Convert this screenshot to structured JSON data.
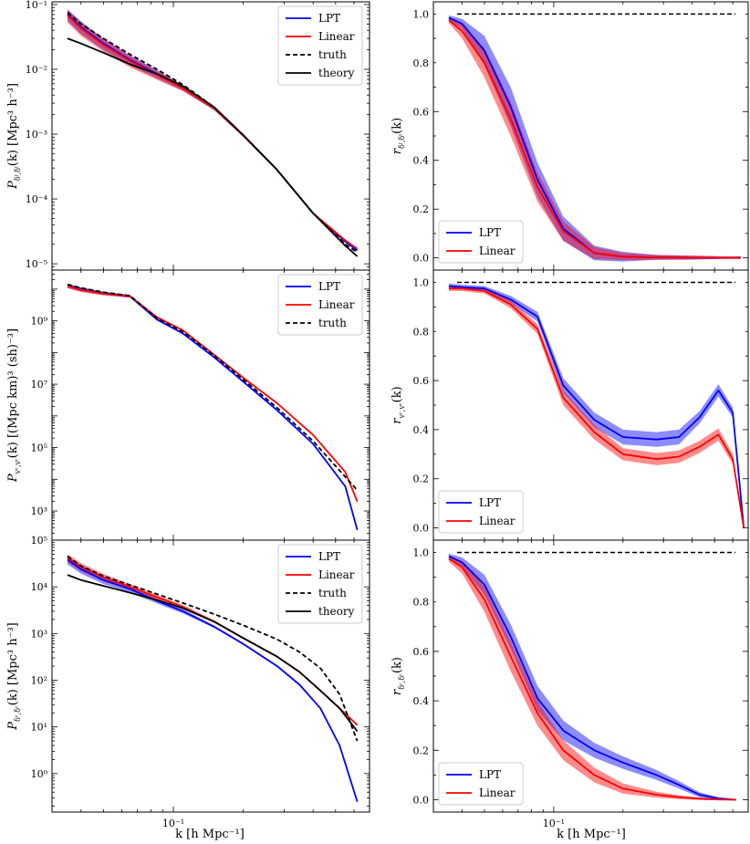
{
  "figure": {
    "xlabel": "k [h Mpc⁻¹]",
    "x_major_tick_label": "10⁻¹"
  },
  "chart_data": [
    {
      "id": "power-delta",
      "type": "line",
      "xscale": "log",
      "yscale": "log",
      "xlim": [
        0.03,
        0.7
      ],
      "ylim": [
        8e-06,
        0.11
      ],
      "ylabel": "P_{δ⁽, δ⁽}(k) [Mpc³ h⁻³]",
      "ylabel_main": "P",
      "ylabel_sub": "δˡ,δˡ",
      "ylabel_rest": "(k) [Mpc³ h⁻³]",
      "yticks": [
        {
          "value": 0.1,
          "label": "10⁻¹"
        },
        {
          "value": 0.01,
          "label": "10⁻²"
        },
        {
          "value": 0.001,
          "label": "10⁻³"
        },
        {
          "value": 0.0001,
          "label": "10⁻⁴"
        },
        {
          "value": 1e-05,
          "label": "10⁻⁵"
        }
      ],
      "legend_position": "top-right",
      "legend": [
        "LPT",
        "Linear",
        "truth",
        "theory"
      ],
      "series": [
        {
          "name": "LPT",
          "color": "#0000ff",
          "style": "solid",
          "x": [
            0.035,
            0.04,
            0.05,
            0.065,
            0.085,
            0.11,
            0.15,
            0.2,
            0.28,
            0.4,
            0.55,
            0.62
          ],
          "y": [
            0.07,
            0.045,
            0.025,
            0.014,
            0.0085,
            0.0052,
            0.0025,
            0.00095,
            0.00028,
            6e-05,
            2.2e-05,
            1.6e-05
          ],
          "band": [
            0.2,
            0.22,
            0.2,
            0.18,
            0.15,
            0.1,
            0.06,
            0.04,
            0.03,
            0.03,
            0.03,
            0.03
          ]
        },
        {
          "name": "Linear",
          "color": "#ff0000",
          "style": "solid",
          "x": [
            0.035,
            0.04,
            0.05,
            0.065,
            0.085,
            0.11,
            0.15,
            0.2,
            0.28,
            0.4,
            0.55,
            0.62
          ],
          "y": [
            0.068,
            0.043,
            0.024,
            0.0135,
            0.0082,
            0.0051,
            0.0025,
            0.00095,
            0.00028,
            6e-05,
            2.3e-05,
            1.7e-05
          ],
          "band": [
            0.22,
            0.24,
            0.22,
            0.2,
            0.16,
            0.1,
            0.06,
            0.04,
            0.03,
            0.03,
            0.03,
            0.03
          ]
        },
        {
          "name": "truth",
          "color": "#000000",
          "style": "dashed",
          "x": [
            0.035,
            0.04,
            0.05,
            0.065,
            0.085,
            0.11,
            0.15,
            0.2,
            0.28,
            0.4,
            0.55,
            0.62
          ],
          "y": [
            0.075,
            0.05,
            0.03,
            0.017,
            0.01,
            0.0058,
            0.0026,
            0.00097,
            0.00028,
            6e-05,
            2e-05,
            1.5e-05
          ]
        },
        {
          "name": "theory",
          "color": "#000000",
          "style": "solid",
          "x": [
            0.035,
            0.04,
            0.05,
            0.065,
            0.085,
            0.11,
            0.15,
            0.2,
            0.28,
            0.4,
            0.55,
            0.62
          ],
          "y": [
            0.03,
            0.025,
            0.018,
            0.012,
            0.0085,
            0.0055,
            0.0026,
            0.00097,
            0.00028,
            6e-05,
            1.9e-05,
            1.3e-05
          ]
        }
      ]
    },
    {
      "id": "corr-delta",
      "type": "line",
      "xscale": "log",
      "yscale": "linear",
      "xlim": [
        0.03,
        0.7
      ],
      "ylim": [
        -0.05,
        1.05
      ],
      "ylabel_main": "r",
      "ylabel_sub": "δˡ,δˡ",
      "ylabel_rest": "(k)",
      "yticks": [
        {
          "value": 0.0,
          "label": "0.0"
        },
        {
          "value": 0.2,
          "label": "0.2"
        },
        {
          "value": 0.4,
          "label": "0.4"
        },
        {
          "value": 0.6,
          "label": "0.6"
        },
        {
          "value": 0.8,
          "label": "0.8"
        },
        {
          "value": 1.0,
          "label": "1.0"
        }
      ],
      "legend_position": "lower-left",
      "legend": [
        "LPT",
        "Linear"
      ],
      "reference_line": 1.0,
      "series": [
        {
          "name": "LPT",
          "color": "#0000ff",
          "style": "solid",
          "x": [
            0.035,
            0.04,
            0.05,
            0.065,
            0.085,
            0.11,
            0.15,
            0.2,
            0.28,
            0.4,
            0.55,
            0.65
          ],
          "y": [
            0.985,
            0.96,
            0.85,
            0.62,
            0.32,
            0.12,
            0.02,
            0.005,
            0.002,
            0.001,
            0.001,
            0.001
          ],
          "band_abs": [
            0.01,
            0.02,
            0.06,
            0.08,
            0.07,
            0.05,
            0.03,
            0.02,
            0.01,
            0.008,
            0.005,
            0.005
          ]
        },
        {
          "name": "Linear",
          "color": "#ff0000",
          "style": "solid",
          "x": [
            0.035,
            0.04,
            0.05,
            0.065,
            0.085,
            0.11,
            0.15,
            0.2,
            0.28,
            0.4,
            0.55,
            0.65
          ],
          "y": [
            0.975,
            0.93,
            0.8,
            0.57,
            0.29,
            0.11,
            0.02,
            0.005,
            0.002,
            0.001,
            0.001,
            0.001
          ],
          "band_abs": [
            0.012,
            0.03,
            0.06,
            0.07,
            0.06,
            0.04,
            0.025,
            0.015,
            0.01,
            0.008,
            0.005,
            0.005
          ]
        }
      ]
    },
    {
      "id": "power-velocity",
      "type": "line",
      "xscale": "log",
      "yscale": "log",
      "xlim": [
        0.03,
        0.7
      ],
      "ylim": [
        120,
        40000000000.0
      ],
      "ylabel_main": "P",
      "ylabel_sub": "vʳ,vʳ",
      "ylabel_rest": "(k) [(Mpc km)³ (sh)⁻³]",
      "yticks": [
        {
          "value": 1000000000.0,
          "label": "10⁹"
        },
        {
          "value": 10000000.0,
          "label": "10⁷"
        },
        {
          "value": 100000.0,
          "label": "10⁵"
        },
        {
          "value": 1000.0,
          "label": "10³"
        }
      ],
      "legend_position": "top-right",
      "legend": [
        "LPT",
        "Linear",
        "truth"
      ],
      "series": [
        {
          "name": "LPT",
          "color": "#0000ff",
          "style": "solid",
          "x": [
            0.035,
            0.04,
            0.05,
            0.065,
            0.085,
            0.11,
            0.15,
            0.2,
            0.28,
            0.4,
            0.55,
            0.62
          ],
          "y": [
            13000000000.0,
            10000000000.0,
            7500000000.0,
            6000000000.0,
            1100000000.0,
            400000000.0,
            70000000.0,
            12000000.0,
            1500000.0,
            130000.0,
            6000.0,
            250.0
          ],
          "band": [
            0.15,
            0.15,
            0.12,
            0.1,
            0.08,
            0.06,
            0.05,
            0.05,
            0.05,
            0.06,
            0.08,
            0.05
          ]
        },
        {
          "name": "Linear",
          "color": "#ff0000",
          "style": "solid",
          "x": [
            0.035,
            0.04,
            0.05,
            0.065,
            0.085,
            0.11,
            0.15,
            0.2,
            0.28,
            0.4,
            0.55,
            0.62
          ],
          "y": [
            12500000000.0,
            9500000000.0,
            7200000000.0,
            6000000000.0,
            1300000000.0,
            500000000.0,
            85000000.0,
            16000000.0,
            2500000.0,
            250000.0,
            17000.0,
            2000.0
          ],
          "band": [
            0.15,
            0.15,
            0.12,
            0.1,
            0.08,
            0.06,
            0.05,
            0.05,
            0.05,
            0.05,
            0.05,
            0.05
          ]
        },
        {
          "name": "truth",
          "color": "#000000",
          "style": "dashed",
          "x": [
            0.035,
            0.04,
            0.05,
            0.065,
            0.085,
            0.11,
            0.15,
            0.2,
            0.28,
            0.4,
            0.55,
            0.62
          ],
          "y": [
            14000000000.0,
            11000000000.0,
            8000000000.0,
            6200000000.0,
            1200000000.0,
            450000000.0,
            80000000.0,
            14000000.0,
            1800000.0,
            160000.0,
            12000.0,
            4500.0
          ]
        }
      ]
    },
    {
      "id": "corr-velocity",
      "type": "line",
      "xscale": "log",
      "yscale": "linear",
      "xlim": [
        0.03,
        0.7
      ],
      "ylim": [
        -0.05,
        1.05
      ],
      "ylabel_main": "r",
      "ylabel_sub": "vʳ,vʳ",
      "ylabel_rest": "(k)",
      "yticks": [
        {
          "value": 0.0,
          "label": "0.0"
        },
        {
          "value": 0.2,
          "label": "0.2"
        },
        {
          "value": 0.4,
          "label": "0.4"
        },
        {
          "value": 0.6,
          "label": "0.6"
        },
        {
          "value": 0.8,
          "label": "0.8"
        },
        {
          "value": 1.0,
          "label": "1.0"
        }
      ],
      "legend_position": "lower-left",
      "legend": [
        "LPT",
        "Linear"
      ],
      "reference_line": 1.0,
      "series": [
        {
          "name": "LPT",
          "color": "#0000ff",
          "style": "solid",
          "x": [
            0.035,
            0.04,
            0.05,
            0.065,
            0.085,
            0.11,
            0.15,
            0.2,
            0.28,
            0.35,
            0.43,
            0.52,
            0.6,
            0.67
          ],
          "y": [
            0.985,
            0.98,
            0.975,
            0.93,
            0.86,
            0.58,
            0.44,
            0.37,
            0.36,
            0.37,
            0.45,
            0.56,
            0.47,
            0.0
          ],
          "band_abs": [
            0.01,
            0.01,
            0.01,
            0.015,
            0.02,
            0.03,
            0.03,
            0.03,
            0.03,
            0.03,
            0.025,
            0.025,
            0.02,
            0.0
          ]
        },
        {
          "name": "Linear",
          "color": "#ff0000",
          "style": "solid",
          "x": [
            0.035,
            0.04,
            0.05,
            0.065,
            0.085,
            0.11,
            0.15,
            0.2,
            0.28,
            0.35,
            0.43,
            0.52,
            0.6,
            0.67
          ],
          "y": [
            0.975,
            0.975,
            0.965,
            0.91,
            0.81,
            0.53,
            0.39,
            0.3,
            0.28,
            0.29,
            0.33,
            0.38,
            0.28,
            0.0
          ],
          "band_abs": [
            0.01,
            0.01,
            0.01,
            0.015,
            0.02,
            0.03,
            0.03,
            0.025,
            0.025,
            0.025,
            0.025,
            0.025,
            0.02,
            0.0
          ]
        }
      ]
    },
    {
      "id": "power-rsd",
      "type": "line",
      "xscale": "log",
      "yscale": "log",
      "xlim": [
        0.03,
        0.7
      ],
      "ylim": [
        0.15,
        100000.0
      ],
      "ylabel_main": "P",
      "ylabel_sub": "δʳ,δʳ",
      "ylabel_rest": "(k) [Mpc³ h⁻³]",
      "yticks": [
        {
          "value": 100000.0,
          "label": "10⁵"
        },
        {
          "value": 10000.0,
          "label": "10⁴"
        },
        {
          "value": 1000.0,
          "label": "10³"
        },
        {
          "value": 100.0,
          "label": "10²"
        },
        {
          "value": 10.0,
          "label": "10¹"
        },
        {
          "value": 1.0,
          "label": "10⁰"
        }
      ],
      "legend_position": "top-right",
      "legend": [
        "LPT",
        "Linear",
        "truth",
        "theory"
      ],
      "series": [
        {
          "name": "LPT",
          "color": "#0000ff",
          "style": "solid",
          "x": [
            0.035,
            0.04,
            0.05,
            0.065,
            0.085,
            0.11,
            0.15,
            0.2,
            0.28,
            0.35,
            0.43,
            0.52,
            0.62
          ],
          "y": [
            38000,
            24000,
            14000,
            9000,
            5000,
            3000,
            1400,
            600,
            200,
            80,
            25,
            4,
            0.25
          ],
          "band": [
            0.2,
            0.2,
            0.18,
            0.15,
            0.12,
            0.1,
            0.06,
            0.05,
            0.05,
            0.05,
            0.05,
            0.05,
            0.05
          ]
        },
        {
          "name": "Linear",
          "color": "#ff0000",
          "style": "solid",
          "x": [
            0.035,
            0.04,
            0.05,
            0.065,
            0.085,
            0.11,
            0.15,
            0.2,
            0.28,
            0.35,
            0.43,
            0.52,
            0.62
          ],
          "y": [
            42000,
            27000,
            16000,
            10000,
            6000,
            3700,
            1800,
            800,
            320,
            150,
            60,
            25,
            11
          ],
          "band": [
            0.2,
            0.2,
            0.18,
            0.15,
            0.12,
            0.1,
            0.06,
            0.05,
            0.04,
            0.04,
            0.04,
            0.04,
            0.04
          ]
        },
        {
          "name": "truth",
          "color": "#000000",
          "style": "dashed",
          "x": [
            0.035,
            0.04,
            0.05,
            0.065,
            0.085,
            0.11,
            0.15,
            0.2,
            0.28,
            0.35,
            0.43,
            0.52,
            0.62
          ],
          "y": [
            45000,
            28000,
            17000,
            11000,
            7000,
            4500,
            2600,
            1500,
            750,
            400,
            180,
            50,
            5
          ]
        },
        {
          "name": "theory",
          "color": "#000000",
          "style": "solid",
          "x": [
            0.035,
            0.04,
            0.05,
            0.065,
            0.085,
            0.11,
            0.15,
            0.2,
            0.28,
            0.35,
            0.43,
            0.52,
            0.62
          ],
          "y": [
            18000,
            14000,
            10500,
            7500,
            5200,
            3500,
            1800,
            800,
            320,
            150,
            60,
            25,
            8
          ]
        }
      ]
    },
    {
      "id": "corr-rsd",
      "type": "line",
      "xscale": "log",
      "yscale": "linear",
      "xlim": [
        0.03,
        0.7
      ],
      "ylim": [
        -0.05,
        1.05
      ],
      "ylabel_main": "r",
      "ylabel_sub": "δʳ,δʳ",
      "ylabel_rest": "(k)",
      "yticks": [
        {
          "value": 0.0,
          "label": "0.0"
        },
        {
          "value": 0.2,
          "label": "0.2"
        },
        {
          "value": 0.4,
          "label": "0.4"
        },
        {
          "value": 0.6,
          "label": "0.6"
        },
        {
          "value": 0.8,
          "label": "0.8"
        },
        {
          "value": 1.0,
          "label": "1.0"
        }
      ],
      "legend_position": "lower-left",
      "legend": [
        "LPT",
        "Linear"
      ],
      "reference_line": 1.0,
      "series": [
        {
          "name": "LPT",
          "color": "#0000ff",
          "style": "solid",
          "x": [
            0.035,
            0.04,
            0.05,
            0.065,
            0.085,
            0.11,
            0.15,
            0.2,
            0.28,
            0.35,
            0.43,
            0.52,
            0.62
          ],
          "y": [
            0.985,
            0.96,
            0.87,
            0.66,
            0.41,
            0.28,
            0.2,
            0.15,
            0.1,
            0.06,
            0.02,
            0.005,
            0.0
          ],
          "band_abs": [
            0.01,
            0.02,
            0.04,
            0.05,
            0.05,
            0.04,
            0.03,
            0.025,
            0.02,
            0.015,
            0.01,
            0.005,
            0.003
          ]
        },
        {
          "name": "Linear",
          "color": "#ff0000",
          "style": "solid",
          "x": [
            0.035,
            0.04,
            0.05,
            0.065,
            0.085,
            0.11,
            0.15,
            0.2,
            0.28,
            0.35,
            0.43,
            0.52,
            0.62
          ],
          "y": [
            0.975,
            0.94,
            0.81,
            0.58,
            0.35,
            0.2,
            0.1,
            0.045,
            0.02,
            0.01,
            0.004,
            0.001,
            0.0
          ],
          "band_abs": [
            0.012,
            0.025,
            0.05,
            0.06,
            0.05,
            0.04,
            0.03,
            0.02,
            0.012,
            0.008,
            0.005,
            0.003,
            0.002
          ]
        }
      ]
    }
  ]
}
